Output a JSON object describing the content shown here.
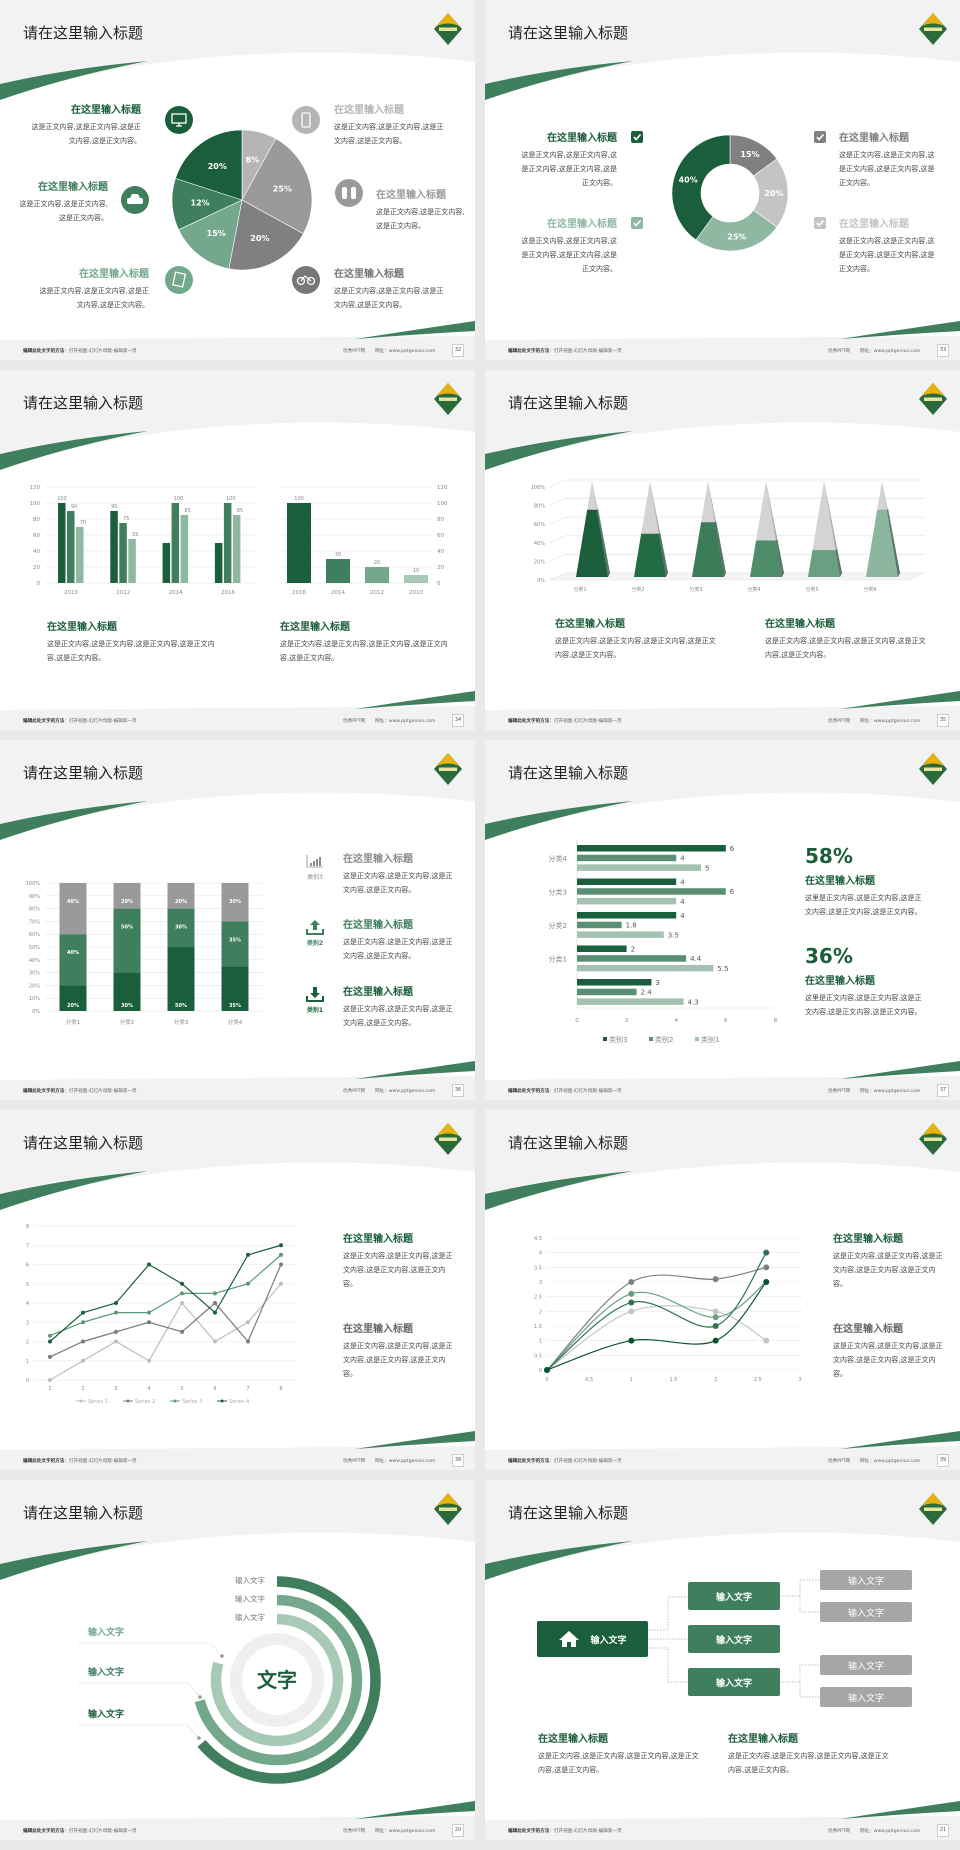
{
  "common": {
    "footer_hint_bold": "编辑此处文字的方法",
    "footer_hint": "：打开视图-幻灯片母版-编辑第一页",
    "footer_site": "优秀PPT网",
    "footer_url": "网址：www.pptgenius.com",
    "colors": {
      "dark_green": "#1b5e3b",
      "green": "#3f7f5e",
      "light_green": "#74a88c",
      "pale_green": "#a9c9b7",
      "gray": "#8c8c8c",
      "light_gray": "#bfbfbf",
      "logo_yellow": "#e9b20c"
    }
  },
  "slides": [
    {
      "type": "pie",
      "title": "请在这里输入标题",
      "page": "32",
      "chart": {
        "type": "pie",
        "values": [
          8,
          25,
          20,
          15,
          12,
          20
        ],
        "colors": [
          "#b5b5b5",
          "#9a9a9a",
          "#808080",
          "#74a88c",
          "#3f7f5e",
          "#1b5e3b"
        ]
      },
      "items": [
        {
          "icon": "monitor-icon",
          "color": "#1b5e3b",
          "heading": "在这里输入标题",
          "body": "这是正文内容,这是正文内容,这是正文内容,这是正文内容。"
        },
        {
          "icon": "car-icon",
          "color": "#3f7f5e",
          "heading": "在这里输入标题",
          "body": "这是正文内容,这是正文内容,这是正文内容。"
        },
        {
          "icon": "book-icon",
          "color": "#74a88c",
          "heading": "在这里输入标题",
          "body": "这是正文内容,这是正文内容,这是正文内容,这是正文内容。"
        },
        {
          "icon": "phone-icon",
          "color": "#b5b5b5",
          "heading": "在这里输入标题",
          "body": "这是正文内容,这是正文内容,这是正文内容,这是正文内容。"
        },
        {
          "icon": "binoculars-icon",
          "color": "#9a9a9a",
          "heading": "在这里输入标题",
          "body": "这是正文内容,这是正文内容,这是正文内容。"
        },
        {
          "icon": "bicycle-icon",
          "color": "#777777",
          "heading": "在这里输入标题",
          "body": "这是正文内容,这是正文内容,这是正文内容,这是正文内容。"
        }
      ]
    },
    {
      "type": "donut",
      "title": "请在这里输入标题",
      "page": "33",
      "chart": {
        "type": "pie",
        "values": [
          15,
          20,
          25,
          40
        ],
        "colors": [
          "#808080",
          "#c4c4c4",
          "#8fb8a2",
          "#1b5e3b"
        ]
      },
      "items": [
        {
          "color": "#1b5e3b",
          "heading": "在这里输入标题",
          "body": "这是正文内容,这是正文内容,这是正文内容,这是正文内容,这是正文内容。"
        },
        {
          "color": "#8fb8a2",
          "heading": "在这里输入标题",
          "body": "这是正文内容,这是正文内容,这是正文内容,这是正文内容,这是正文内容。"
        },
        {
          "color": "#808080",
          "heading": "在这里输入标题",
          "body": "这是正文内容,这是正文内容,这是正文内容,这是正文内容,这是正文内容。"
        },
        {
          "color": "#c4c4c4",
          "heading": "在这里输入标题",
          "body": "这是正文内容,这是正文内容,这是正文内容,这是正文内容,这是正文内容。"
        }
      ]
    },
    {
      "type": "bars",
      "title": "请在这里输入标题",
      "page": "34",
      "chart_left": {
        "type": "bar",
        "categories": [
          "2010",
          "2012",
          "2014",
          "2016"
        ],
        "ylim": [
          0,
          120
        ],
        "y_ticks": [
          0,
          20,
          40,
          60,
          80,
          100,
          120
        ],
        "series": [
          {
            "values": [
              100,
              90,
              50,
              50
            ],
            "labels": [
              100,
              90,
              null,
              null
            ],
            "color": "#1b5e3b"
          },
          {
            "values": [
              90,
              75,
              100,
              100
            ],
            "labels": [
              90,
              75,
              100,
              100
            ],
            "color": "#3f7f5e"
          },
          {
            "values": [
              70,
              55,
              85,
              85
            ],
            "labels": [
              70,
              55,
              85,
              85
            ],
            "color": "#8fb8a2"
          }
        ]
      },
      "chart_right": {
        "type": "bar",
        "categories": [
          "2016",
          "2014",
          "2012",
          "2010"
        ],
        "values": [
          100,
          30,
          20,
          10
        ],
        "ylim": [
          0,
          120
        ],
        "y_ticks": [
          0,
          20,
          40,
          60,
          80,
          100,
          120
        ],
        "colors": [
          "#1b5e3b",
          "#3f7f5e",
          "#74a88c",
          "#a9c9b7"
        ]
      },
      "items": [
        {
          "heading": "在这里输入标题",
          "body": "这是正文内容,这是正文内容,这是正文内容,这是正文内容,这是正文内容。"
        },
        {
          "heading": "在这里输入标题",
          "body": "这是正文内容,这是正文内容,这是正文内容,这是正文内容,这是正文内容。"
        }
      ]
    },
    {
      "type": "pyramid",
      "title": "请在这里输入标题",
      "page": "35",
      "chart": {
        "type": "bar",
        "categories": [
          "分类1",
          "分类2",
          "分类3",
          "分类4",
          "分类5",
          "分类6"
        ],
        "values": [
          70,
          45,
          57,
          38,
          28,
          70
        ],
        "ylim": [
          0,
          100
        ],
        "y_ticks": [
          "0%",
          "20%",
          "40%",
          "60%",
          "80%",
          "100%"
        ],
        "colors": [
          "#1b5e3b",
          "#236b45",
          "#3a7d58",
          "#4f8c6a",
          "#6a9f82",
          "#8bb59e"
        ]
      },
      "items": [
        {
          "heading": "在这里输入标题",
          "body": "这是正文内容,这是正文内容,这是正文内容,这是正文内容,这是正文内容。"
        },
        {
          "heading": "在这里输入标题",
          "body": "这是正文内容,这是正文内容,这是正文内容,这是正文内容,这是正文内容。"
        }
      ]
    },
    {
      "type": "stacked",
      "title": "请在这里输入标题",
      "page": "36",
      "chart": {
        "type": "bar",
        "stacked": true,
        "categories": [
          "分类1",
          "分类2",
          "分类3",
          "分类4"
        ],
        "ylim": [
          0,
          100
        ],
        "y_ticks": [
          "0%",
          "10%",
          "20%",
          "30%",
          "40%",
          "50%",
          "60%",
          "70%",
          "80%",
          "90%",
          "100%"
        ],
        "series": [
          {
            "name": "类别1",
            "values": [
              20,
              30,
              50,
              35
            ],
            "color": "#1b5e3b"
          },
          {
            "name": "类别2",
            "values": [
              40,
              50,
              30,
              35
            ],
            "color": "#3f7f5e"
          },
          {
            "name": "类别3",
            "values": [
              40,
              20,
              20,
              30
            ],
            "color": "#9a9a9a"
          }
        ]
      },
      "items": [
        {
          "icon": "bar-chart-icon",
          "label": "类别3",
          "color": "#8c8c8c",
          "heading": "在这里输入标题",
          "body": "这是正文内容,这是正文内容,这是正文内容,这是正文内容。"
        },
        {
          "icon": "upload-icon",
          "label": "类别2",
          "color": "#3f7f5e",
          "heading": "在这里输入标题",
          "body": "这是正文内容,这是正文内容,这是正文内容,这是正文内容。"
        },
        {
          "icon": "download-icon",
          "label": "类别1",
          "color": "#1b5e3b",
          "heading": "在这里输入标题",
          "body": "这是正文内容,这是正文内容,这是正文内容,这是正文内容。"
        }
      ]
    },
    {
      "type": "hbars",
      "title": "请在这里输入标题",
      "page": "37",
      "chart": {
        "type": "bar",
        "orientation": "horizontal",
        "categories": [
          "分类4",
          "分类3",
          "分类2",
          "分类1",
          ""
        ],
        "xlim": [
          0,
          8
        ],
        "x_ticks": [
          0,
          2,
          4,
          6,
          8
        ],
        "series": [
          {
            "name": "类别3",
            "values": [
              6,
              4,
              4,
              2,
              3
            ],
            "color": "#1b5e3b"
          },
          {
            "name": "类别2",
            "values": [
              4,
              6,
              1.8,
              4.4,
              2.4
            ],
            "color": "#5a8f73"
          },
          {
            "name": "类别1",
            "values": [
              5,
              4,
              3.5,
              5.5,
              4.3
            ],
            "color": "#a3c2b1"
          }
        ],
        "legend": "bottom"
      },
      "stats": [
        {
          "value": "58%",
          "heading": "在这里输入标题",
          "body": "这里是正文内容,这是正文内容,这是正文内容,这是正文内容,这是正文内容。"
        },
        {
          "value": "36%",
          "heading": "在这里输入标题",
          "body": "这里是正文内容,这是正文内容,这是正文内容,这是正文内容,这是正文内容。"
        }
      ]
    },
    {
      "type": "lines",
      "title": "请在这里输入标题",
      "page": "38",
      "chart": {
        "type": "line",
        "x": [
          1,
          2,
          3,
          4,
          5,
          6,
          7,
          8
        ],
        "ylim": [
          0,
          8
        ],
        "y_ticks": [
          0,
          1,
          2,
          3,
          4,
          5,
          6,
          7,
          8
        ],
        "legend": "bottom",
        "series": [
          {
            "name": "Series 1",
            "values": [
              0,
              1,
              2,
              1,
              4,
              2,
              3,
              5
            ],
            "color": "#bdbdbd"
          },
          {
            "name": "Series 2",
            "values": [
              1.2,
              2,
              2.5,
              3,
              2.5,
              4,
              2,
              6
            ],
            "color": "#7a7a7a"
          },
          {
            "name": "Series 3",
            "values": [
              2.3,
              3,
              3.5,
              3.5,
              4.5,
              4.5,
              5,
              6.5
            ],
            "color": "#5a9a78"
          },
          {
            "name": "Series 4",
            "values": [
              2,
              3.5,
              4,
              6,
              5,
              3.5,
              6.5,
              7
            ],
            "color": "#1b5e3b"
          }
        ]
      },
      "items": [
        {
          "color": "#1b5e3b",
          "heading": "在这里输入标题",
          "body": "这是正文内容,这是正文内容,这是正文内容,这是正文内容,这是正文内容。"
        },
        {
          "color": "#666666",
          "heading": "在这里输入标题",
          "body": "这是正文内容,这是正文内容,这是正文内容,这是正文内容,这是正文内容。"
        }
      ]
    },
    {
      "type": "smooth",
      "title": "请在这里输入标题",
      "page": "39",
      "chart": {
        "type": "scatter",
        "smooth": true,
        "x": [
          0,
          1,
          2,
          2.6
        ],
        "xlim": [
          0,
          3
        ],
        "ylim": [
          0,
          4.5
        ],
        "x_ticks": [
          0,
          0.5,
          1,
          1.5,
          2,
          2.5,
          3
        ],
        "y_ticks": [
          0,
          0.5,
          1,
          1.5,
          2,
          2.5,
          3,
          3.5,
          4,
          4.5
        ],
        "series": [
          {
            "values": [
              0,
              2,
              2,
              1
            ],
            "color": "#c4c4c4"
          },
          {
            "values": [
              0,
              3,
              3.1,
              3.5
            ],
            "color": "#808080"
          },
          {
            "values": [
              0,
              2.6,
              1.8,
              3
            ],
            "color": "#6a9f82"
          },
          {
            "values": [
              0,
              2.3,
              1.5,
              4
            ],
            "color": "#2f7350"
          },
          {
            "values": [
              0,
              1,
              1,
              3
            ],
            "color": "#0f5232"
          }
        ]
      },
      "items": [
        {
          "color": "#1b5e3b",
          "heading": "在这里输入标题",
          "body": "这是正文内容,这是正文内容,这是正文内容,这是正文内容,这是正文内容。"
        },
        {
          "color": "#666666",
          "heading": "在这里输入标题",
          "body": "这是正文内容,这是正文内容,这是正文内容,这是正文内容,这是正文内容。"
        }
      ]
    },
    {
      "type": "rings",
      "title": "请在这里输入标题",
      "page": "20",
      "center_text": "文字",
      "ring_labels": [
        "输入文字",
        "输入文字",
        "输入文字"
      ],
      "side_labels": [
        {
          "text": "输入文字",
          "color": "#74a88c"
        },
        {
          "text": "输入文字",
          "color": "#3f7f5e"
        },
        {
          "text": "输入文字",
          "color": "#1b5e3b"
        }
      ],
      "ring_colors": [
        "#3f7f5e",
        "#74a88c",
        "#a9c9b7"
      ]
    },
    {
      "type": "tree",
      "title": "请在这里输入标题",
      "page": "21",
      "root": {
        "icon": "home-icon",
        "text": "输入文字"
      },
      "mid": [
        "输入文字",
        "输入文字",
        "输入文字"
      ],
      "leaves": [
        "输入文字",
        "输入文字",
        "输入文字",
        "输入文字"
      ],
      "items": [
        {
          "heading": "在这里输入标题",
          "body": "这是正文内容,这是正文内容,这是正文内容,这是正文内容,这是正文内容。"
        },
        {
          "heading": "在这里输入标题",
          "body": "这是正文内容,这是正文内容,这是正文内容,这是正文内容,这是正文内容。"
        }
      ]
    }
  ]
}
